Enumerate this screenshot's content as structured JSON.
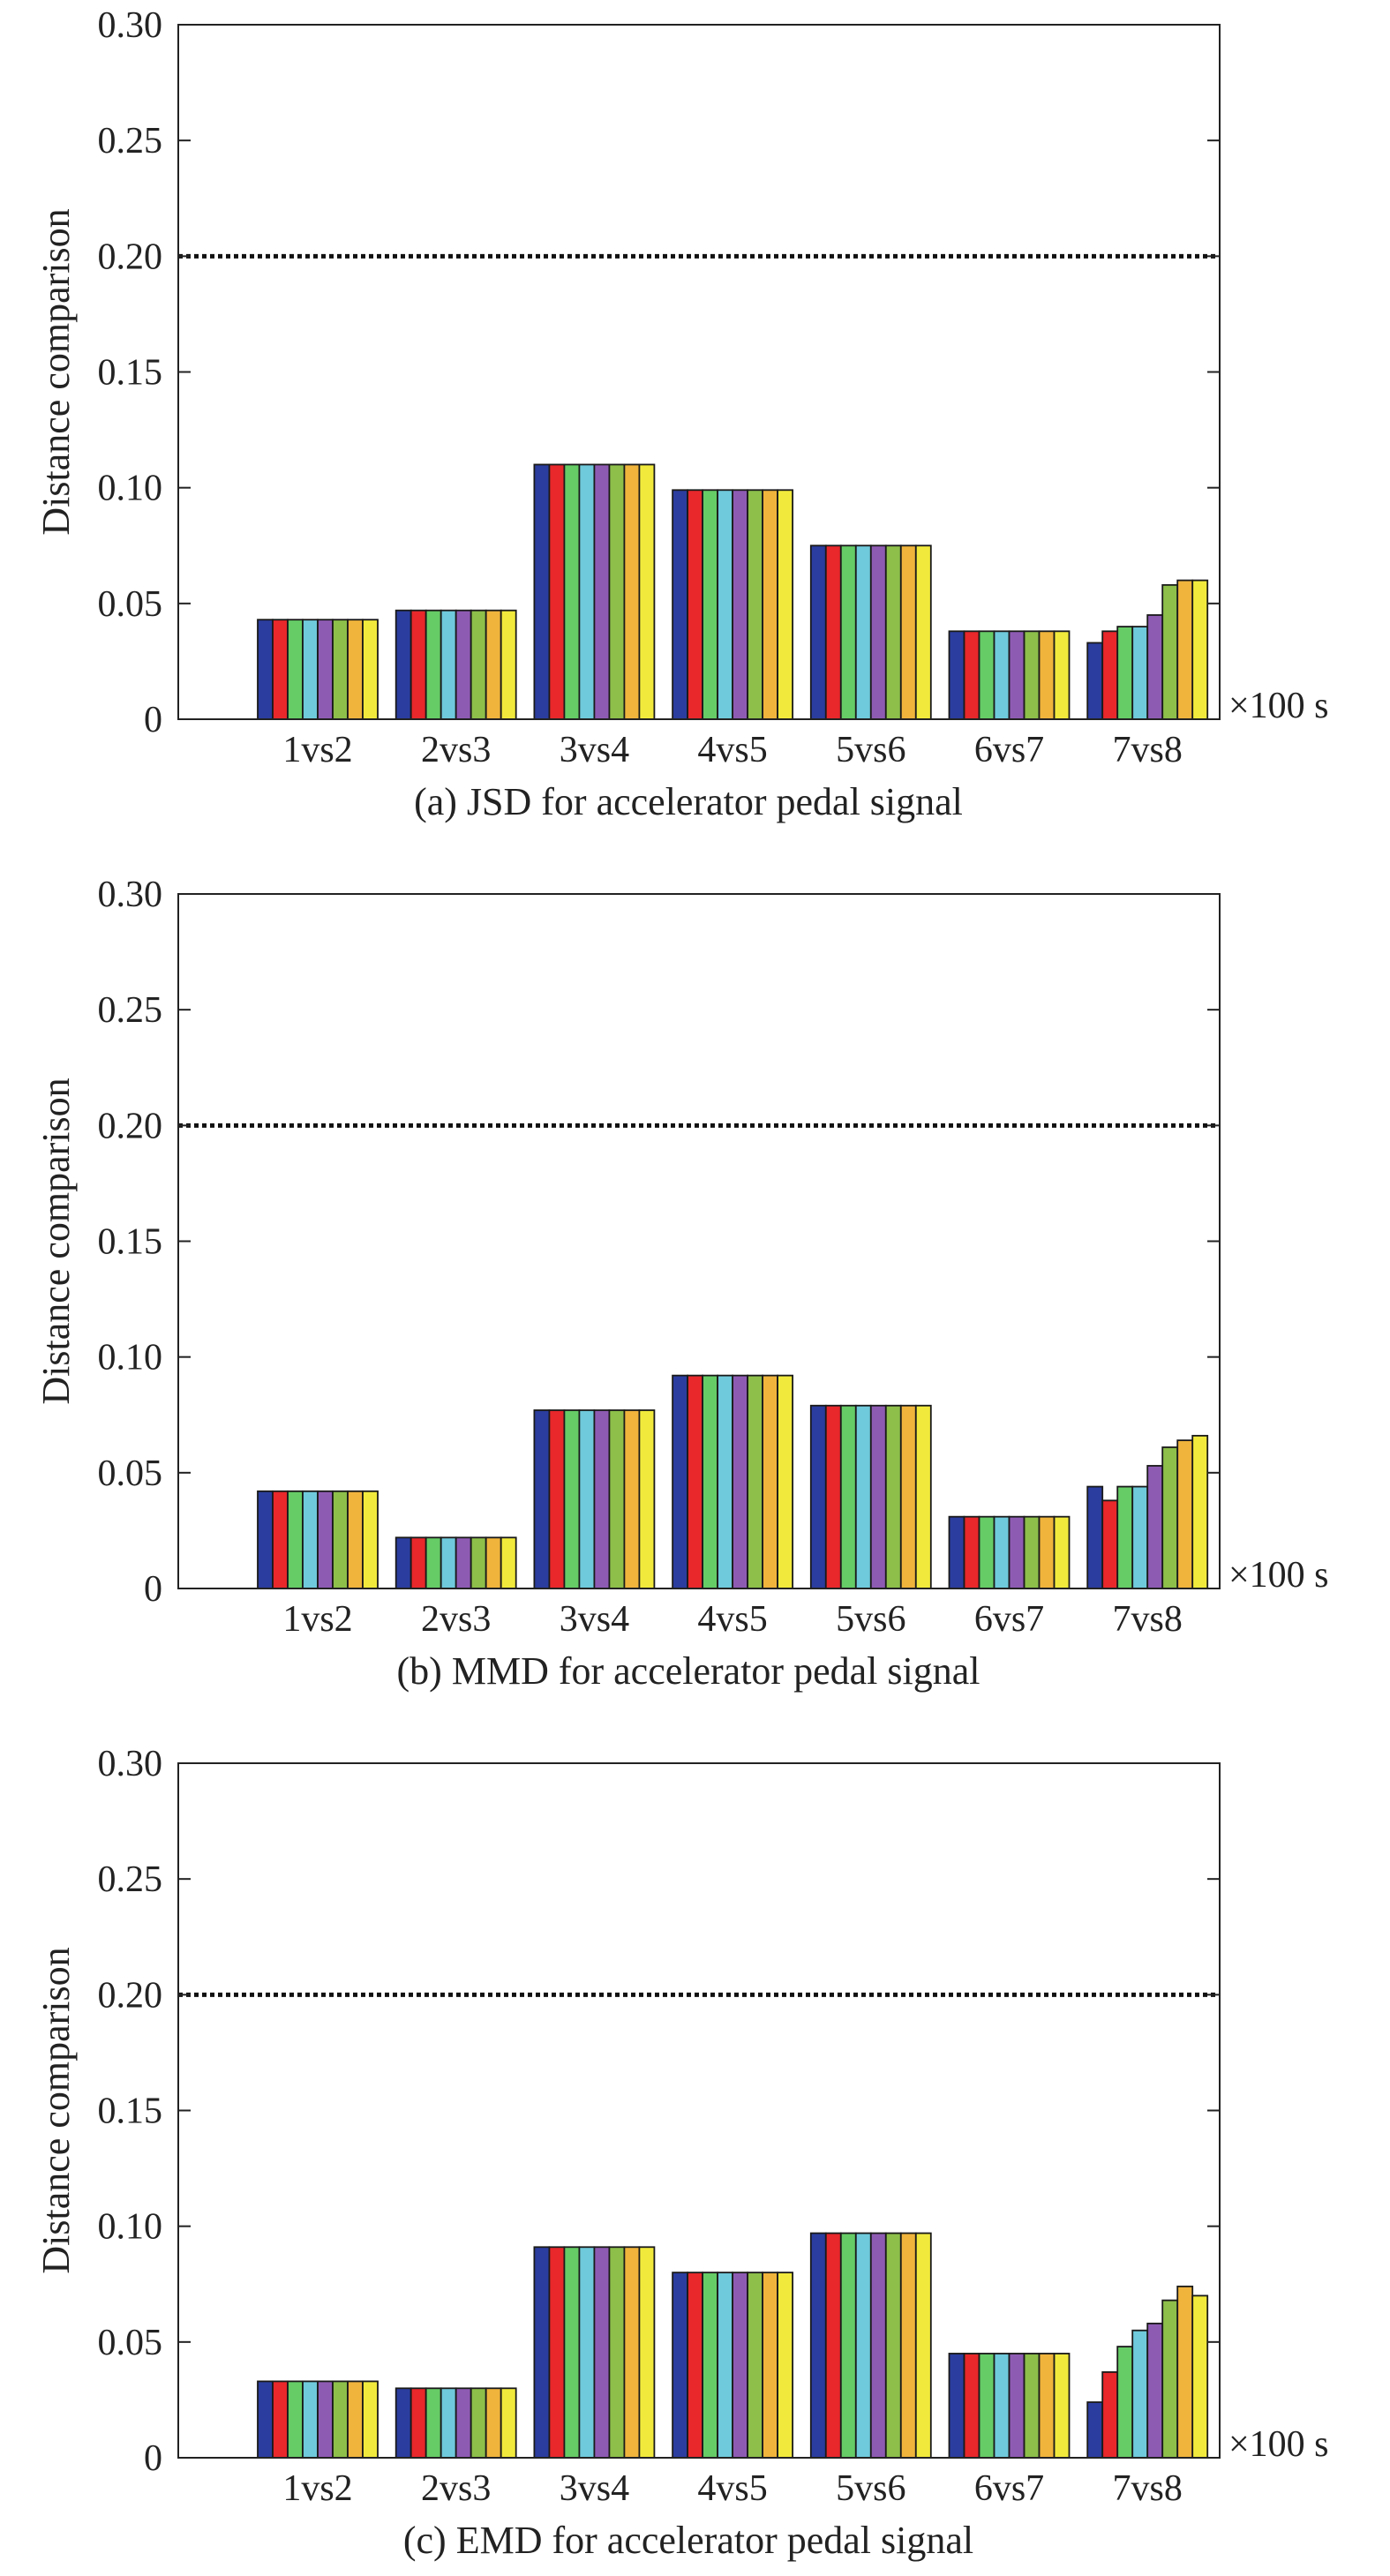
{
  "series_colors": [
    "#2b3d9e",
    "#e8282b",
    "#66cc66",
    "#6fcadb",
    "#8e5bb3",
    "#8dbf4a",
    "#f0b43c",
    "#f1ea3c"
  ],
  "chart_data": [
    {
      "type": "bar",
      "title": "(a) JSD for accelerator pedal signal",
      "xlabel": "",
      "ylabel": "Distance comparison",
      "x_unit": "×100 s",
      "ylim": [
        0,
        0.3
      ],
      "yticks": [
        "0",
        "0.05",
        "0.10",
        "0.15",
        "0.20",
        "0.25",
        "0.30"
      ],
      "threshold": 0.2,
      "grid": false,
      "categories": [
        "1vs2",
        "2vs3",
        "3vs4",
        "4vs5",
        "5vs6",
        "6vs7",
        "7vs8"
      ],
      "values": [
        [
          0.043,
          0.043,
          0.043,
          0.043,
          0.043,
          0.043,
          0.043,
          0.043
        ],
        [
          0.047,
          0.047,
          0.047,
          0.047,
          0.047,
          0.047,
          0.047,
          0.047
        ],
        [
          0.11,
          0.11,
          0.11,
          0.11,
          0.11,
          0.11,
          0.11,
          0.11
        ],
        [
          0.099,
          0.099,
          0.099,
          0.099,
          0.099,
          0.099,
          0.099,
          0.099
        ],
        [
          0.075,
          0.075,
          0.075,
          0.075,
          0.075,
          0.075,
          0.075,
          0.075
        ],
        [
          0.038,
          0.038,
          0.038,
          0.038,
          0.038,
          0.038,
          0.038,
          0.038
        ],
        [
          0.033,
          0.038,
          0.04,
          0.04,
          0.045,
          0.058,
          0.06,
          0.06
        ]
      ]
    },
    {
      "type": "bar",
      "title": "(b) MMD for accelerator pedal signal",
      "xlabel": "",
      "ylabel": "Distance comparison",
      "x_unit": "×100 s",
      "ylim": [
        0,
        0.3
      ],
      "yticks": [
        "0",
        "0.05",
        "0.10",
        "0.15",
        "0.20",
        "0.25",
        "0.30"
      ],
      "threshold": 0.2,
      "grid": false,
      "categories": [
        "1vs2",
        "2vs3",
        "3vs4",
        "4vs5",
        "5vs6",
        "6vs7",
        "7vs8"
      ],
      "values": [
        [
          0.042,
          0.042,
          0.042,
          0.042,
          0.042,
          0.042,
          0.042,
          0.042
        ],
        [
          0.022,
          0.022,
          0.022,
          0.022,
          0.022,
          0.022,
          0.022,
          0.022
        ],
        [
          0.077,
          0.077,
          0.077,
          0.077,
          0.077,
          0.077,
          0.077,
          0.077
        ],
        [
          0.092,
          0.092,
          0.092,
          0.092,
          0.092,
          0.092,
          0.092,
          0.092
        ],
        [
          0.079,
          0.079,
          0.079,
          0.079,
          0.079,
          0.079,
          0.079,
          0.079
        ],
        [
          0.031,
          0.031,
          0.031,
          0.031,
          0.031,
          0.031,
          0.031,
          0.031
        ],
        [
          0.044,
          0.038,
          0.044,
          0.044,
          0.053,
          0.061,
          0.064,
          0.066
        ]
      ]
    },
    {
      "type": "bar",
      "title": "(c) EMD for accelerator pedal signal",
      "xlabel": "",
      "ylabel": "Distance comparison",
      "x_unit": "×100 s",
      "ylim": [
        0,
        0.3
      ],
      "yticks": [
        "0",
        "0.05",
        "0.10",
        "0.15",
        "0.20",
        "0.25",
        "0.30"
      ],
      "threshold": 0.2,
      "grid": false,
      "categories": [
        "1vs2",
        "2vs3",
        "3vs4",
        "4vs5",
        "5vs6",
        "6vs7",
        "7vs8"
      ],
      "values": [
        [
          0.033,
          0.033,
          0.033,
          0.033,
          0.033,
          0.033,
          0.033,
          0.033
        ],
        [
          0.03,
          0.03,
          0.03,
          0.03,
          0.03,
          0.03,
          0.03,
          0.03
        ],
        [
          0.091,
          0.091,
          0.091,
          0.091,
          0.091,
          0.091,
          0.091,
          0.091
        ],
        [
          0.08,
          0.08,
          0.08,
          0.08,
          0.08,
          0.08,
          0.08,
          0.08
        ],
        [
          0.097,
          0.097,
          0.097,
          0.097,
          0.097,
          0.097,
          0.097,
          0.097
        ],
        [
          0.045,
          0.045,
          0.045,
          0.045,
          0.045,
          0.045,
          0.045,
          0.045
        ],
        [
          0.024,
          0.037,
          0.048,
          0.055,
          0.058,
          0.068,
          0.074,
          0.07
        ]
      ]
    }
  ]
}
